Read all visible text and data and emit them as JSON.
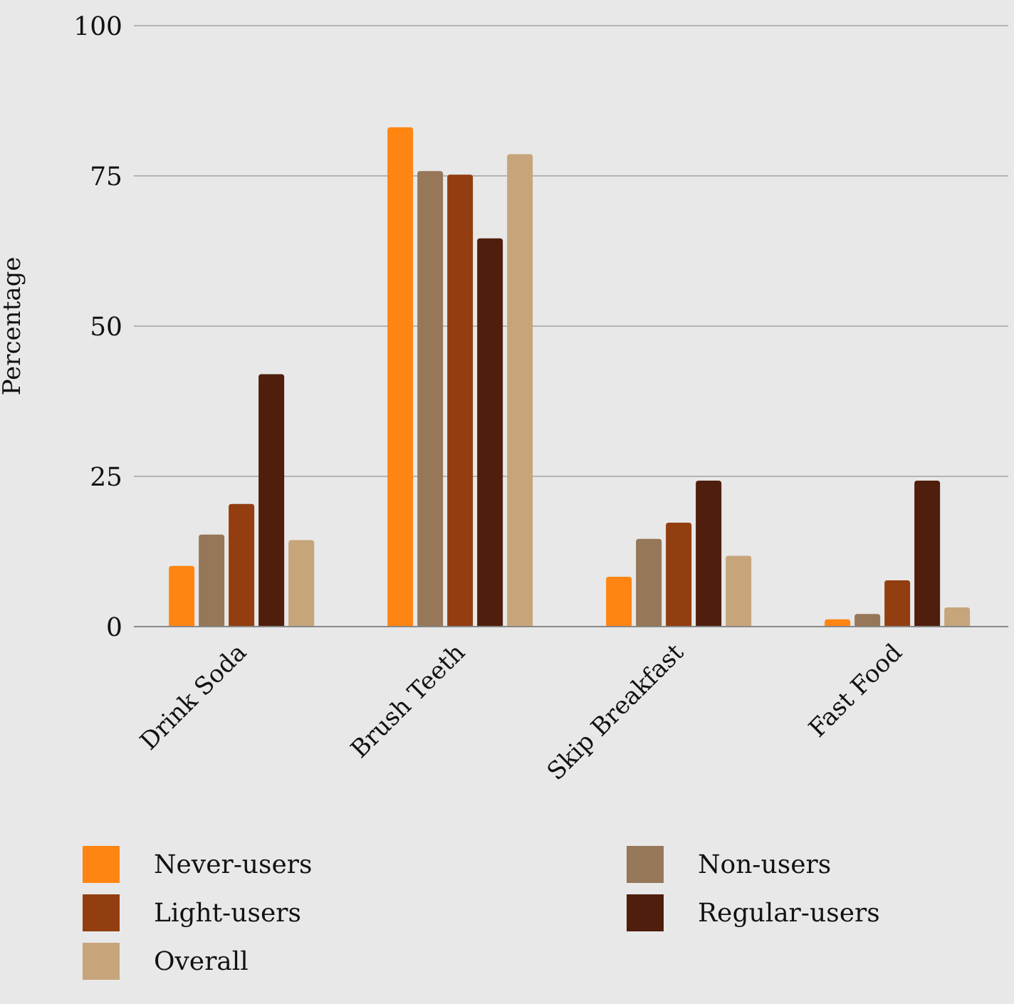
{
  "chart_data": {
    "type": "bar",
    "ylabel": "Percentage",
    "categories": [
      "Drink Soda",
      "Brush Teeth",
      "Skip Breakfast",
      "Fast Food"
    ],
    "series": [
      {
        "name": "Never-users",
        "color": "#ff8512",
        "values": [
          10.1,
          83.1,
          8.3,
          1.2
        ]
      },
      {
        "name": "Non-users",
        "color": "#967759",
        "values": [
          15.3,
          75.8,
          14.6,
          2.1
        ]
      },
      {
        "name": "Light-users",
        "color": "#933e10",
        "values": [
          20.4,
          75.2,
          17.3,
          7.7
        ]
      },
      {
        "name": "Regular-users",
        "color": "#4f1e0d",
        "values": [
          42,
          64.6,
          24.3,
          24.3
        ]
      },
      {
        "name": "Overall",
        "color": "#c7a57a",
        "values": [
          14.4,
          78.6,
          11.8,
          3.2
        ]
      }
    ],
    "ylim": [
      0,
      100
    ],
    "yticks": [
      0,
      25,
      50,
      75,
      100
    ],
    "grid": "y",
    "legend": "bottom"
  }
}
